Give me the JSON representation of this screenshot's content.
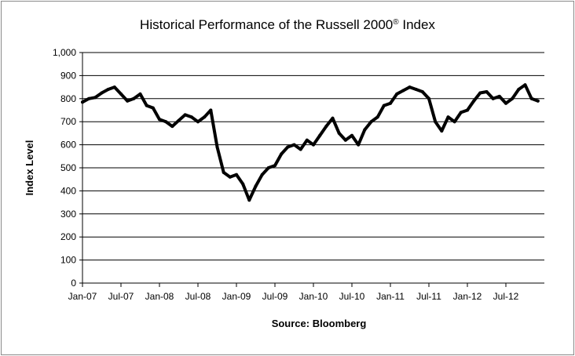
{
  "chart_data": {
    "type": "line",
    "title": "Historical Performance of the Russell 2000",
    "title_mark": "®",
    "title_suffix": " Index",
    "xlabel": "Source: Bloomberg",
    "ylabel": "Index Level",
    "ylim": [
      0,
      1000
    ],
    "yticks": [
      "0",
      "100",
      "200",
      "300",
      "400",
      "500",
      "600",
      "700",
      "800",
      "900",
      "1,000"
    ],
    "xticks": [
      "Jan-07",
      "Jul-07",
      "Jan-08",
      "Jul-08",
      "Jan-09",
      "Jul-09",
      "Jan-10",
      "Jul-10",
      "Jan-11",
      "Jul-11",
      "Jan-12",
      "Jul-12"
    ],
    "xlim": [
      "2007-01",
      "2012-12"
    ],
    "grid": "horizontal",
    "legend": "none",
    "line_color": "#000000",
    "series": [
      {
        "x": [
          "2007-01",
          "2007-02",
          "2007-03",
          "2007-04",
          "2007-05",
          "2007-06",
          "2007-07",
          "2007-08",
          "2007-09",
          "2007-10",
          "2007-11",
          "2007-12",
          "2008-01",
          "2008-02",
          "2008-03",
          "2008-04",
          "2008-05",
          "2008-06",
          "2008-07",
          "2008-08",
          "2008-09",
          "2008-10",
          "2008-11",
          "2008-12",
          "2009-01",
          "2009-02",
          "2009-03",
          "2009-04",
          "2009-05",
          "2009-06",
          "2009-07",
          "2009-08",
          "2009-09",
          "2009-10",
          "2009-11",
          "2009-12",
          "2010-01",
          "2010-02",
          "2010-03",
          "2010-04",
          "2010-05",
          "2010-06",
          "2010-07",
          "2010-08",
          "2010-09",
          "2010-10",
          "2010-11",
          "2010-12",
          "2011-01",
          "2011-02",
          "2011-03",
          "2011-04",
          "2011-05",
          "2011-06",
          "2011-07",
          "2011-08",
          "2011-09",
          "2011-10",
          "2011-11",
          "2011-12",
          "2012-01",
          "2012-02",
          "2012-03",
          "2012-04",
          "2012-05",
          "2012-06",
          "2012-07",
          "2012-08",
          "2012-09",
          "2012-10",
          "2012-11",
          "2012-12"
        ],
        "values": [
          785,
          800,
          805,
          825,
          840,
          850,
          820,
          790,
          800,
          820,
          770,
          760,
          710,
          700,
          680,
          705,
          730,
          720,
          700,
          720,
          750,
          590,
          480,
          460,
          470,
          430,
          360,
          420,
          470,
          500,
          510,
          560,
          590,
          600,
          580,
          620,
          600,
          640,
          680,
          715,
          650,
          620,
          640,
          600,
          665,
          700,
          720,
          770,
          780,
          820,
          835,
          850,
          840,
          830,
          800,
          700,
          660,
          720,
          700,
          740,
          750,
          790,
          825,
          830,
          800,
          810,
          780,
          800,
          840,
          860,
          800,
          790
        ]
      }
    ]
  }
}
